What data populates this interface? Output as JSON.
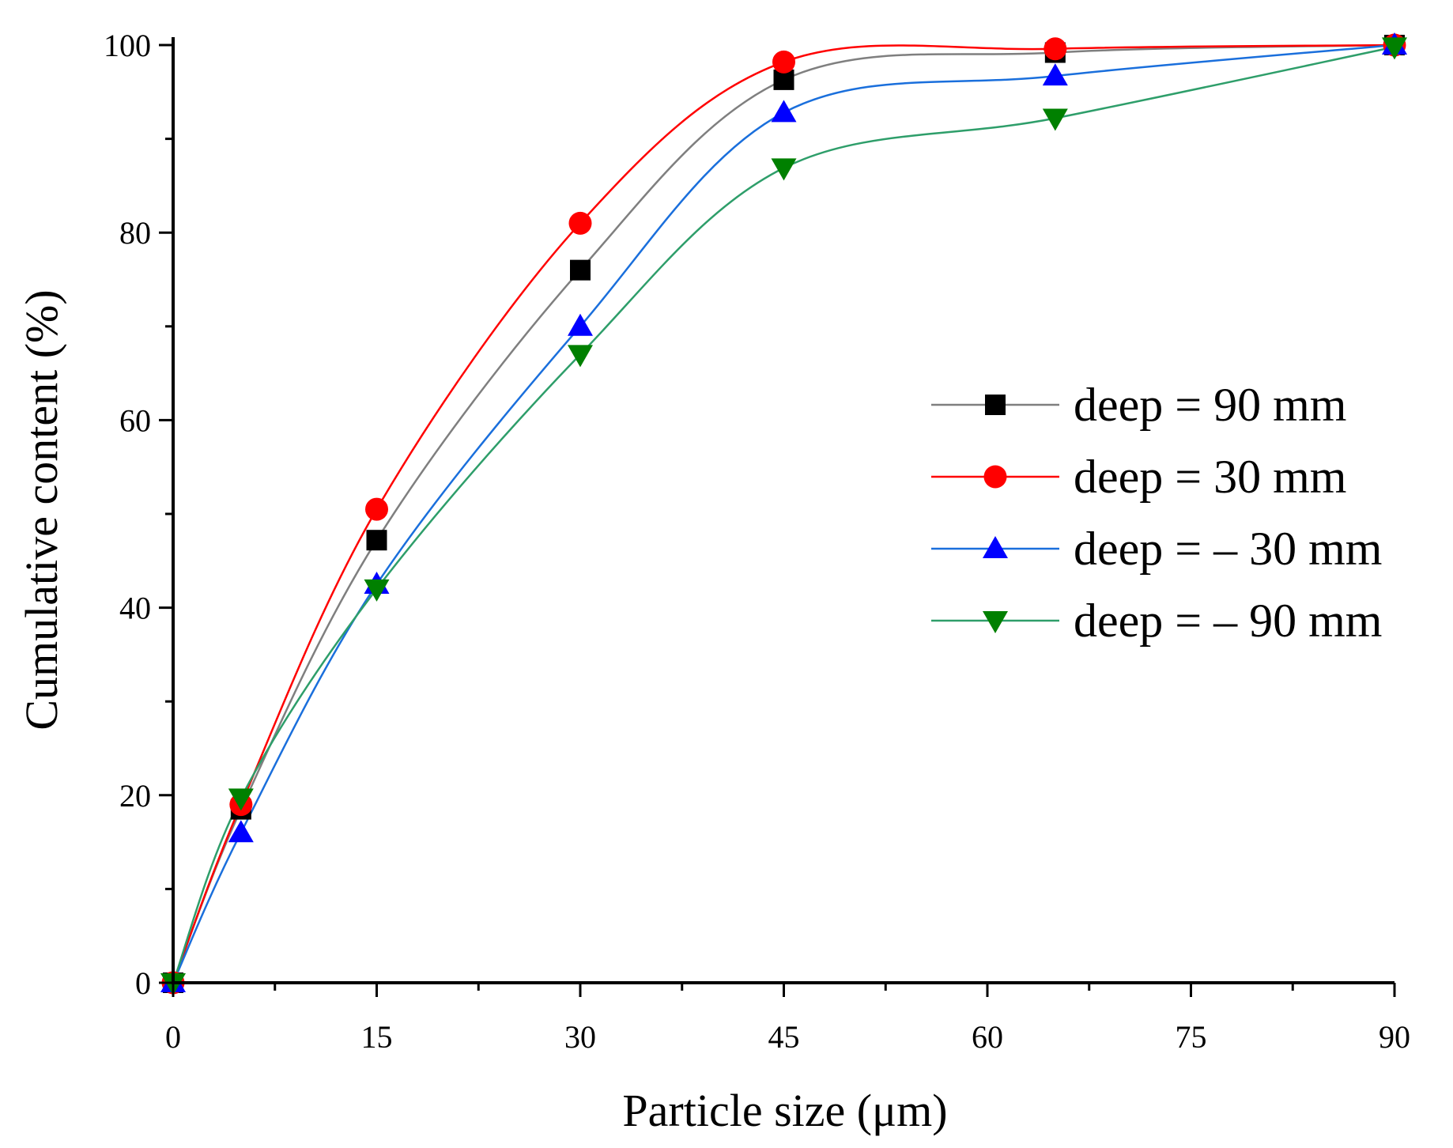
{
  "chart_data": {
    "type": "line",
    "xlabel": "Particle size (μm)",
    "ylabel": "Cumulative content (%)",
    "xlim": [
      0,
      90
    ],
    "ylim": [
      0,
      100
    ],
    "xticks": [
      0,
      15,
      30,
      45,
      60,
      75,
      90
    ],
    "yticks": [
      0,
      20,
      40,
      60,
      80,
      100
    ],
    "xtick_labels": [
      "0",
      "15",
      "30",
      "45",
      "60",
      "75",
      "90"
    ],
    "ytick_labels": [
      "0",
      "20",
      "40",
      "60",
      "80",
      "100"
    ],
    "grid": false,
    "legend_position": "right",
    "x": [
      0,
      5,
      15,
      30,
      45,
      65,
      90
    ],
    "series": [
      {
        "name": "deep = 90 mm",
        "color": "#000000",
        "line_color": "#7f7f7f",
        "marker": "square",
        "values": [
          0,
          18.5,
          47.2,
          76,
          96.3,
          99.2,
          100
        ]
      },
      {
        "name": "deep = 30 mm",
        "color": "#ff0000",
        "line_color": "#ff0000",
        "marker": "circle",
        "values": [
          0,
          19,
          50.5,
          81,
          98.2,
          99.6,
          100
        ]
      },
      {
        "name": "deep = – 30 mm",
        "color": "#0000ff",
        "line_color": "#1a6fdc",
        "marker": "triangle-up",
        "values": [
          0,
          16,
          42.5,
          70,
          92.8,
          96.7,
          100
        ]
      },
      {
        "name": "deep = – 90 mm",
        "color": "#008000",
        "line_color": "#2e9e6a",
        "marker": "triangle-down",
        "values": [
          0,
          19.7,
          42,
          67,
          86.9,
          92.2,
          99.8
        ]
      }
    ]
  }
}
